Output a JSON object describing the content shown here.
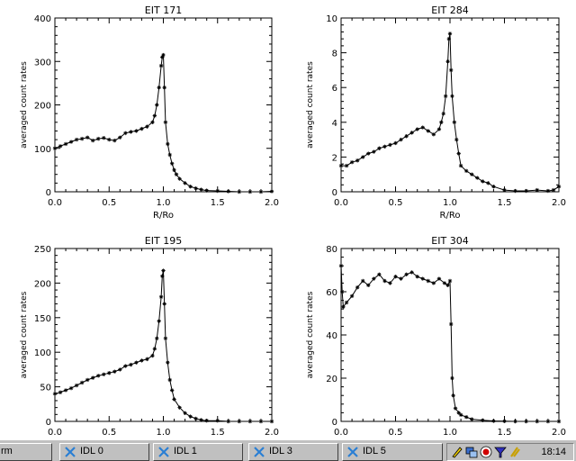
{
  "chart_data": [
    {
      "type": "scatter",
      "title": "EIT 171",
      "xlabel": "R/Ro",
      "ylabel": "averaged count rates",
      "xlim": [
        0,
        2
      ],
      "ylim": [
        0,
        400
      ],
      "xticks": [
        "0.0",
        "0.5",
        "1.0",
        "1.5",
        "2.0"
      ],
      "yticks": [
        "0",
        "100",
        "200",
        "300",
        "400"
      ],
      "x": [
        0.0,
        0.05,
        0.1,
        0.15,
        0.2,
        0.25,
        0.3,
        0.35,
        0.4,
        0.45,
        0.5,
        0.55,
        0.6,
        0.65,
        0.7,
        0.75,
        0.8,
        0.85,
        0.9,
        0.92,
        0.94,
        0.96,
        0.98,
        0.99,
        1.0,
        1.01,
        1.02,
        1.04,
        1.06,
        1.08,
        1.1,
        1.12,
        1.15,
        1.2,
        1.25,
        1.3,
        1.35,
        1.4,
        1.5,
        1.6,
        1.7,
        1.8,
        1.9,
        2.0
      ],
      "y": [
        100,
        105,
        110,
        115,
        120,
        122,
        125,
        118,
        122,
        124,
        120,
        118,
        125,
        135,
        138,
        140,
        145,
        150,
        160,
        175,
        200,
        240,
        290,
        310,
        315,
        240,
        160,
        110,
        85,
        65,
        50,
        40,
        30,
        20,
        12,
        8,
        5,
        3,
        2,
        1,
        0,
        0,
        0,
        1
      ]
    },
    {
      "type": "scatter",
      "title": "EIT 284",
      "xlabel": "R/Ro",
      "ylabel": "averaged count rates",
      "xlim": [
        0,
        2
      ],
      "ylim": [
        0,
        10
      ],
      "xticks": [
        "0.0",
        "0.5",
        "1.0",
        "1.5",
        "2.0"
      ],
      "yticks": [
        "0",
        "2",
        "4",
        "6",
        "8",
        "10"
      ],
      "x": [
        0.0,
        0.05,
        0.1,
        0.15,
        0.2,
        0.25,
        0.3,
        0.35,
        0.4,
        0.45,
        0.5,
        0.55,
        0.6,
        0.65,
        0.7,
        0.75,
        0.8,
        0.85,
        0.9,
        0.92,
        0.94,
        0.96,
        0.98,
        0.99,
        1.0,
        1.01,
        1.02,
        1.04,
        1.06,
        1.08,
        1.1,
        1.15,
        1.2,
        1.25,
        1.3,
        1.35,
        1.4,
        1.5,
        1.6,
        1.7,
        1.8,
        1.9,
        1.95,
        2.0
      ],
      "y": [
        1.5,
        1.5,
        1.7,
        1.8,
        2.0,
        2.2,
        2.3,
        2.5,
        2.6,
        2.7,
        2.8,
        3.0,
        3.2,
        3.4,
        3.6,
        3.7,
        3.5,
        3.3,
        3.6,
        4.0,
        4.5,
        5.5,
        7.5,
        8.8,
        9.1,
        7.0,
        5.5,
        4.0,
        3.0,
        2.2,
        1.5,
        1.2,
        1.0,
        0.8,
        0.6,
        0.5,
        0.3,
        0.1,
        0.05,
        0.05,
        0.1,
        0.05,
        0.1,
        0.3
      ]
    },
    {
      "type": "scatter",
      "title": "EIT 195",
      "xlabel": "",
      "ylabel": "averaged count rates",
      "xlim": [
        0,
        2
      ],
      "ylim": [
        0,
        250
      ],
      "xticks": [
        "0.0",
        "0.5",
        "1.0",
        "1.5",
        "2.0"
      ],
      "yticks": [
        "0",
        "50",
        "100",
        "150",
        "200",
        "250"
      ],
      "x": [
        0.0,
        0.05,
        0.1,
        0.15,
        0.2,
        0.25,
        0.3,
        0.35,
        0.4,
        0.45,
        0.5,
        0.55,
        0.6,
        0.65,
        0.7,
        0.75,
        0.8,
        0.85,
        0.9,
        0.92,
        0.94,
        0.96,
        0.98,
        0.99,
        1.0,
        1.01,
        1.02,
        1.04,
        1.06,
        1.08,
        1.1,
        1.15,
        1.2,
        1.25,
        1.3,
        1.35,
        1.4,
        1.5,
        1.6,
        1.7,
        1.8,
        1.9,
        2.0
      ],
      "y": [
        40,
        42,
        45,
        48,
        52,
        56,
        60,
        63,
        66,
        68,
        70,
        72,
        75,
        80,
        82,
        85,
        88,
        90,
        95,
        105,
        120,
        145,
        180,
        210,
        218,
        170,
        120,
        85,
        60,
        45,
        32,
        20,
        12,
        7,
        4,
        2,
        1,
        1,
        0,
        0,
        0,
        0,
        0
      ]
    },
    {
      "type": "scatter",
      "title": "EIT 304",
      "xlabel": "",
      "ylabel": "averaged count rates",
      "xlim": [
        0,
        2
      ],
      "ylim": [
        0,
        80
      ],
      "xticks": [
        "0.0",
        "0.5",
        "1.0",
        "1.5",
        "2.0"
      ],
      "yticks": [
        "0",
        "20",
        "40",
        "60",
        "80"
      ],
      "x": [
        0.0,
        0.01,
        0.02,
        0.05,
        0.1,
        0.15,
        0.2,
        0.25,
        0.3,
        0.35,
        0.4,
        0.45,
        0.5,
        0.55,
        0.6,
        0.65,
        0.7,
        0.75,
        0.8,
        0.85,
        0.9,
        0.95,
        0.98,
        1.0,
        1.01,
        1.02,
        1.03,
        1.05,
        1.08,
        1.1,
        1.15,
        1.2,
        1.3,
        1.4,
        1.5,
        1.6,
        1.7,
        1.8,
        1.9,
        2.0
      ],
      "y": [
        72,
        60,
        53,
        55,
        58,
        62,
        65,
        63,
        66,
        68,
        65,
        64,
        67,
        66,
        68,
        69,
        67,
        66,
        65,
        64,
        66,
        64,
        63,
        65,
        45,
        20,
        12,
        6,
        4,
        3,
        2,
        1,
        0.5,
        0.2,
        0.1,
        0,
        0,
        0,
        0,
        0
      ]
    }
  ],
  "taskbar": {
    "items": [
      {
        "label": "rm",
        "icon": "terminal-icon"
      },
      {
        "label": "IDL 0",
        "icon": "idl-icon"
      },
      {
        "label": "IDL 1",
        "icon": "idl-icon"
      },
      {
        "label": "IDL 3",
        "icon": "idl-icon"
      },
      {
        "label": "IDL 5",
        "icon": "idl-icon"
      }
    ],
    "clock": "18:14"
  }
}
